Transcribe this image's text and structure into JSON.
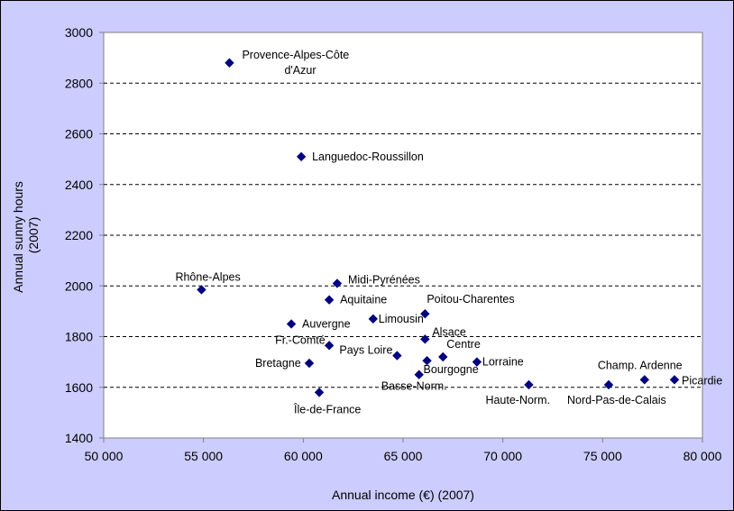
{
  "chart_data": {
    "type": "scatter",
    "xlabel": "Annual income (€) (2007)",
    "ylabel_lines": [
      "Annual sunny hours",
      "(2007)"
    ],
    "xlim": [
      50000,
      80000
    ],
    "ylim": [
      1400,
      3000
    ],
    "x_ticks": [
      "50 000",
      "55 000",
      "60 000",
      "65 000",
      "70 000",
      "75 000",
      "80 000"
    ],
    "y_ticks": [
      "1400",
      "1600",
      "1800",
      "2000",
      "2200",
      "2400",
      "2600",
      "2800",
      "3000"
    ],
    "grid": "horizontal dashed",
    "marker_color": "#000080",
    "plot_background": "#ffffff",
    "chart_background": "#ccccff",
    "points": [
      {
        "label": [
          "Provence-Alpes-Côte",
          "d'Azur"
        ],
        "x": 56300,
        "y": 2880
      },
      {
        "label": [
          "Languedoc-Roussillon"
        ],
        "x": 59900,
        "y": 2510
      },
      {
        "label": [
          "Rhône-Alpes"
        ],
        "x": 54900,
        "y": 1985
      },
      {
        "label": [
          "Midi-Pyrénées"
        ],
        "x": 61700,
        "y": 2010
      },
      {
        "label": [
          "Aquitaine"
        ],
        "x": 61300,
        "y": 1945
      },
      {
        "label": [
          "Poitou-Charentes"
        ],
        "x": 66100,
        "y": 1890
      },
      {
        "label": [
          "Auvergne"
        ],
        "x": 59400,
        "y": 1850
      },
      {
        "label": [
          "Limousin"
        ],
        "x": 63500,
        "y": 1870
      },
      {
        "label": [
          "Alsace"
        ],
        "x": 66100,
        "y": 1790
      },
      {
        "label": [
          "Fr.-Comté"
        ],
        "x": 61300,
        "y": 1765
      },
      {
        "label": [
          "Pays Loire"
        ],
        "x": 64700,
        "y": 1725
      },
      {
        "label": [
          "Centre"
        ],
        "x": 67000,
        "y": 1720
      },
      {
        "label": [
          "Bretagne"
        ],
        "x": 60300,
        "y": 1695
      },
      {
        "label": [
          "Bourgogne"
        ],
        "x": 66200,
        "y": 1705
      },
      {
        "label": [
          "Lorraine"
        ],
        "x": 68700,
        "y": 1700
      },
      {
        "label": [
          "Basse-Norm."
        ],
        "x": 65800,
        "y": 1650
      },
      {
        "label": [
          "Haute-Norm."
        ],
        "x": 71300,
        "y": 1610
      },
      {
        "label": [
          "Nord-Pas-de-Calais"
        ],
        "x": 75300,
        "y": 1610
      },
      {
        "label": [
          "Champ. Ardenne"
        ],
        "x": 77100,
        "y": 1630
      },
      {
        "label": [
          "Picardie"
        ],
        "x": 78600,
        "y": 1630
      },
      {
        "label": [
          "Île-de-France"
        ],
        "x": 60800,
        "y": 1580
      }
    ]
  }
}
